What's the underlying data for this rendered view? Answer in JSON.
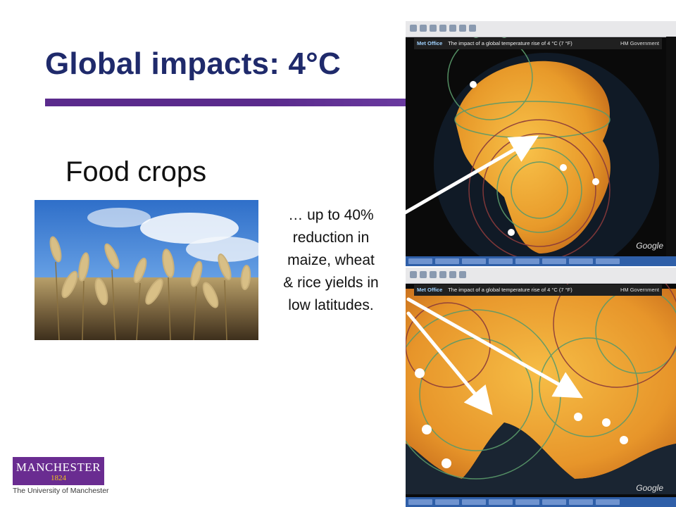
{
  "slide": {
    "title": "Global impacts: 4°C",
    "subtitle": "Food crops",
    "caption_lines": [
      "… up to 40%",
      "reduction in",
      "maize, wheat",
      "& rice yields in",
      "low latitudes."
    ]
  },
  "screenshot_top": {
    "banner_brand": "Met Office",
    "banner_title": "The impact of a global temperature rise of 4 °C (7 °F)",
    "banner_gov": "HM Government",
    "watermark": "Google"
  },
  "screenshot_bottom": {
    "banner_brand": "Met Office",
    "banner_title": "The impact of a global temperature rise of 4 °C (7 °F)",
    "banner_gov": "HM Government",
    "watermark": "Google"
  },
  "logo": {
    "name": "MANCHESTER",
    "year": "1824",
    "subtitle": "The University of Manchester"
  },
  "colors": {
    "title": "#1f2a6b",
    "rule": "#5a2a8c",
    "logo_bg": "#6a2c91",
    "map_warm": "#f0a030",
    "arrow": "#ffffff"
  },
  "icons": [
    "wheat-photo",
    "globe-africa-map",
    "globe-asia-map",
    "manchester-logo"
  ]
}
